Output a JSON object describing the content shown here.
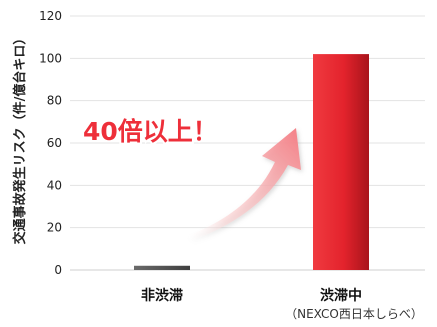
{
  "chart_data": {
    "type": "bar",
    "categories": [
      "非渋滞",
      "渋滞中"
    ],
    "values": [
      2,
      102
    ],
    "ylabel": "交通事故発生リスク（件/億台キロ）",
    "ylim": [
      0,
      120
    ],
    "yticks": [
      0,
      20,
      40,
      60,
      80,
      100,
      120
    ],
    "grid": true,
    "bar_colors": [
      "#555555",
      "#e8232e"
    ],
    "annotation": "40倍以上！",
    "annotation_color": "#ee2f3a",
    "source": "（NEXCO西日本しらべ）"
  }
}
